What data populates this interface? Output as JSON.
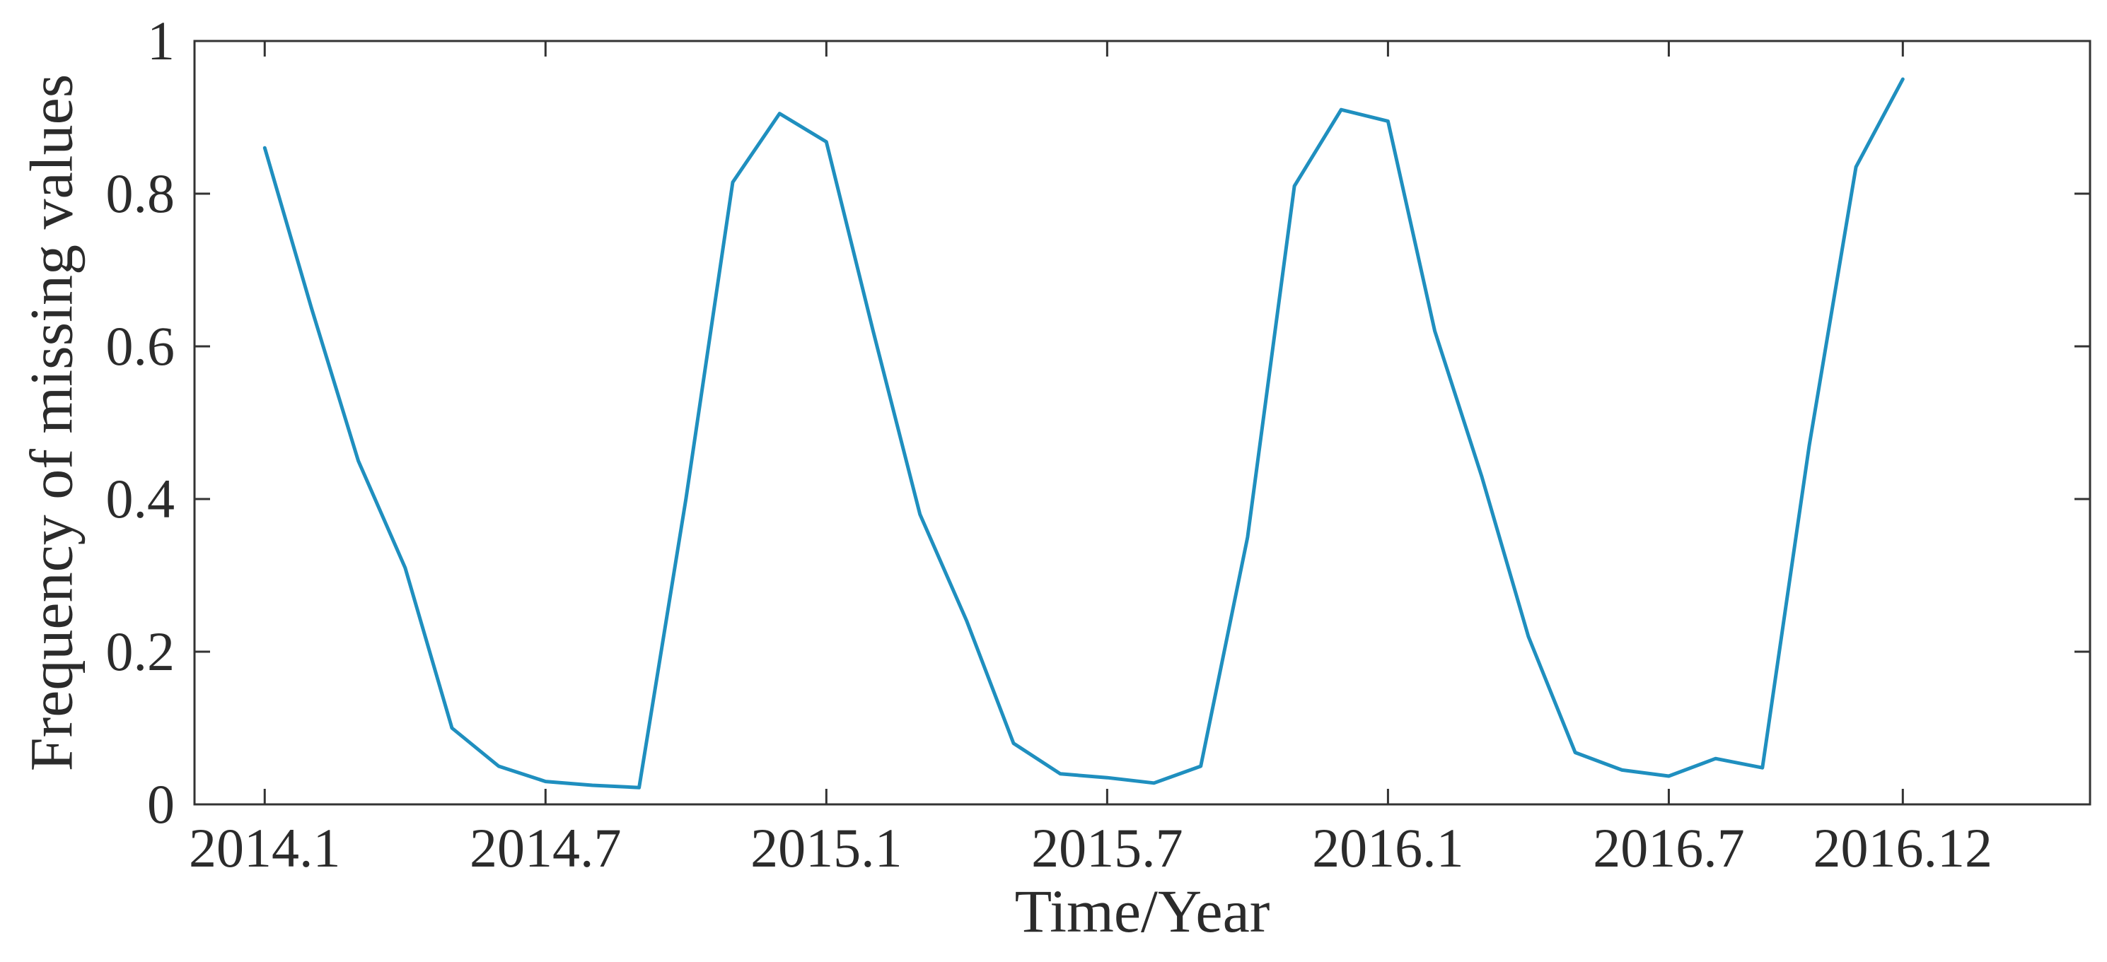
{
  "chart_data": {
    "type": "line",
    "title": "",
    "xlabel": "Time/Year",
    "ylabel": "Frequency of missing values",
    "x": [
      "2014.1",
      "2014.2",
      "2014.3",
      "2014.4",
      "2014.5",
      "2014.6",
      "2014.7",
      "2014.8",
      "2014.9",
      "2014.10",
      "2014.11",
      "2014.12",
      "2015.1",
      "2015.2",
      "2015.3",
      "2015.4",
      "2015.5",
      "2015.6",
      "2015.7",
      "2015.8",
      "2015.9",
      "2015.10",
      "2015.11",
      "2015.12",
      "2016.1",
      "2016.2",
      "2016.3",
      "2016.4",
      "2016.5",
      "2016.6",
      "2016.7",
      "2016.8",
      "2016.9",
      "2016.10",
      "2016.11",
      "2016.12"
    ],
    "series": [
      {
        "values": [
          0.86,
          0.65,
          0.45,
          0.31,
          0.1,
          0.05,
          0.03,
          0.025,
          0.022,
          0.4,
          0.815,
          0.905,
          0.868,
          0.62,
          0.38,
          0.24,
          0.08,
          0.04,
          0.035,
          0.028,
          0.05,
          0.35,
          0.81,
          0.91,
          0.895,
          0.62,
          0.43,
          0.22,
          0.068,
          0.045,
          0.037,
          0.06,
          0.048,
          0.47,
          0.835,
          0.95
        ],
        "color": "#1f8fbf"
      }
    ],
    "xticks": [
      "2014.1",
      "2014.7",
      "2015.1",
      "2015.7",
      "2016.1",
      "2016.7",
      "2016.12"
    ],
    "yticks": [
      0,
      0.2,
      0.4,
      0.6,
      0.8,
      1
    ],
    "ytick_labels": [
      "0",
      "0.2",
      "0.4",
      "0.6",
      "0.8",
      "1"
    ],
    "ylim": [
      0,
      1
    ],
    "xlim_index": [
      -1.5,
      39
    ],
    "grid": false,
    "legend": "none",
    "axis_color": "#333333"
  }
}
